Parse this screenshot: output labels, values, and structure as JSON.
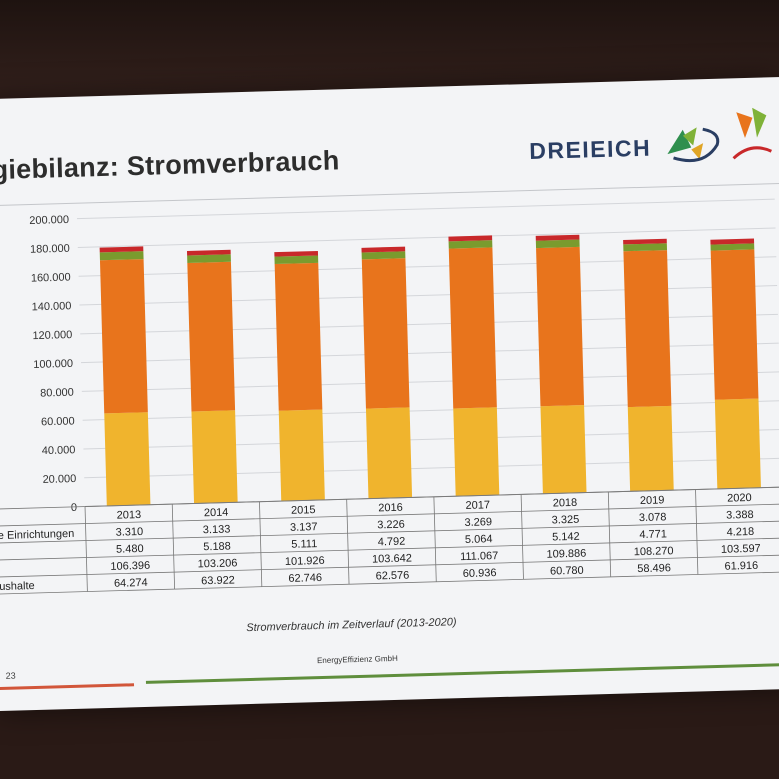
{
  "slide": {
    "title": "giebilanz: Stromverbrauch",
    "logo_text": "DREIEICH",
    "caption": "Stromverbrauch im Zeitverlauf (2013-2020)",
    "footer_page": "23",
    "footer_company": "EnergyEffizienz GmbH"
  },
  "chart_data": {
    "type": "bar",
    "stacked": true,
    "categories": [
      "2013",
      "2014",
      "2015",
      "2016",
      "2017",
      "2018",
      "2019",
      "2020"
    ],
    "ylim": [
      0,
      200000
    ],
    "yticks": [
      "0",
      "20.000",
      "40.000",
      "60.000",
      "80.000",
      "100.000",
      "120.000",
      "140.000",
      "160.000",
      "180.000",
      "200.000"
    ],
    "grid": true,
    "series": [
      {
        "name": "ushalte",
        "color": "#f0b42d",
        "values": [
          64274,
          63922,
          62746,
          62576,
          60936,
          60780,
          58496,
          61916
        ],
        "labels": [
          "64.274",
          "63.922",
          "62.746",
          "62.576",
          "60.936",
          "60.780",
          "58.496",
          "61.916"
        ]
      },
      {
        "name": "",
        "color": "#e8741c",
        "values": [
          106396,
          103206,
          101926,
          103642,
          111067,
          109886,
          108270,
          103597
        ],
        "labels": [
          "106.396",
          "103.206",
          "101.926",
          "103.642",
          "111.067",
          "109.886",
          "108.270",
          "103.597"
        ]
      },
      {
        "name": "",
        "color": "#7a9b2e",
        "values": [
          5480,
          5188,
          5111,
          4792,
          5064,
          5142,
          4771,
          4218
        ],
        "labels": [
          "5.480",
          "5.188",
          "5.111",
          "4.792",
          "5.064",
          "5.142",
          "4.771",
          "4.218"
        ]
      },
      {
        "name": "e Einrichtungen",
        "color": "#c8282a",
        "values": [
          3310,
          3133,
          3137,
          3226,
          3269,
          3325,
          3078,
          3388
        ],
        "labels": [
          "3.310",
          "3.133",
          "3.137",
          "3.226",
          "3.269",
          "3.325",
          "3.078",
          "3.388"
        ]
      }
    ],
    "table_row_order": [
      3,
      2,
      1,
      0
    ]
  }
}
